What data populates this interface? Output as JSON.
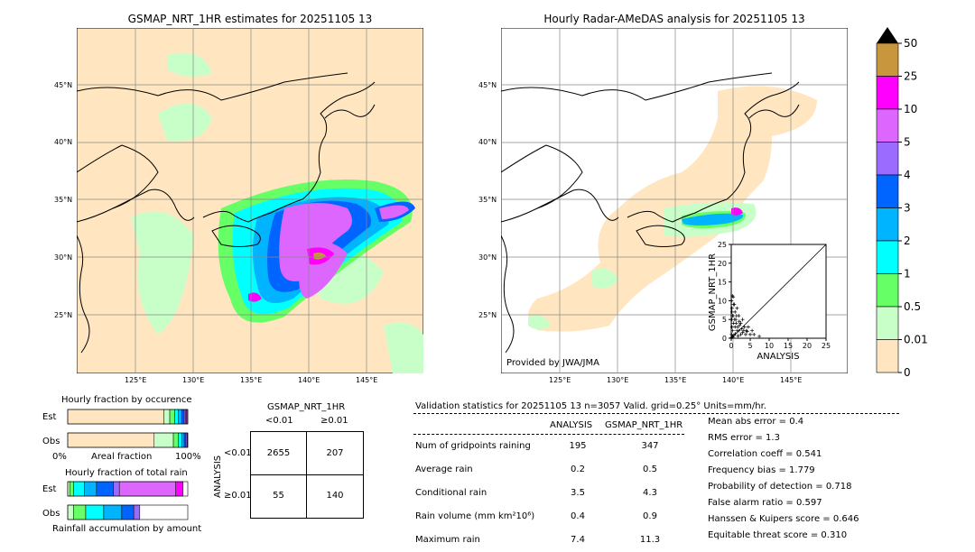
{
  "left_map": {
    "title": "GSMAP_NRT_1HR estimates for 20251105 13",
    "lat_labels": [
      "45°N",
      "40°N",
      "35°N",
      "30°N",
      "25°N"
    ],
    "lon_labels": [
      "125°E",
      "130°E",
      "135°E",
      "140°E",
      "145°E"
    ]
  },
  "right_map": {
    "title": "Hourly Radar-AMeDAS analysis for 20251105 13",
    "lat_labels": [
      "45°N",
      "40°N",
      "35°N",
      "30°N",
      "25°N"
    ],
    "lon_labels": [
      "125°E",
      "130°E",
      "135°E",
      "140°E",
      "145°E"
    ],
    "credit": "Provided by JWA/JMA"
  },
  "colorbar": {
    "labels": [
      "50",
      "25",
      "10",
      "5",
      "4",
      "3",
      "2",
      "1",
      "0.5",
      "0.01",
      "0"
    ],
    "colors": [
      "#c8963c",
      "#ff00ff",
      "#dd66ff",
      "#9b6bff",
      "#0064ff",
      "#00b4ff",
      "#00ffff",
      "#66ff66",
      "#c8ffc8",
      "#ffe6c0"
    ]
  },
  "chart_data": [
    {
      "type": "scatter",
      "xlabel": "ANALYSIS",
      "ylabel": "GSMAP_NRT_1HR",
      "xlim": [
        0,
        25
      ],
      "ylim": [
        0,
        25
      ],
      "xticks": [
        "0",
        "5",
        "10",
        "15",
        "20",
        "25"
      ],
      "yticks": [
        "0",
        "5",
        "10",
        "15",
        "20",
        "25"
      ],
      "points": [
        [
          0.1,
          10
        ],
        [
          0.2,
          8
        ],
        [
          0.3,
          6
        ],
        [
          0.5,
          11
        ],
        [
          0.8,
          9
        ],
        [
          1,
          7
        ],
        [
          1.2,
          5
        ],
        [
          1.5,
          8
        ],
        [
          2,
          6
        ],
        [
          2.5,
          4
        ],
        [
          3,
          5
        ],
        [
          3.5,
          3
        ],
        [
          0.2,
          3
        ],
        [
          0.4,
          2
        ],
        [
          0.6,
          4
        ],
        [
          1,
          3
        ],
        [
          1.5,
          2
        ],
        [
          2,
          2
        ],
        [
          2.5,
          1
        ],
        [
          3,
          1.5
        ],
        [
          4,
          2
        ],
        [
          5,
          1
        ],
        [
          6,
          1
        ],
        [
          7.4,
          0.5
        ],
        [
          0.1,
          1
        ],
        [
          0.3,
          0.5
        ],
        [
          0.7,
          0.8
        ],
        [
          1.1,
          1.2
        ],
        [
          1.8,
          0.6
        ],
        [
          0.2,
          5
        ],
        [
          0.5,
          6
        ],
        [
          0.9,
          5
        ],
        [
          1.3,
          4
        ],
        [
          1.7,
          3
        ],
        [
          2.2,
          3.5
        ],
        [
          2.8,
          2.5
        ],
        [
          3.3,
          2
        ],
        [
          4.5,
          3
        ],
        [
          5.5,
          2
        ],
        [
          0.1,
          0.2
        ],
        [
          0.4,
          0.3
        ],
        [
          0.2,
          7
        ],
        [
          0.6,
          9
        ],
        [
          1.4,
          6
        ],
        [
          2.1,
          4.5
        ],
        [
          3.8,
          1
        ],
        [
          4.2,
          1.8
        ],
        [
          0.3,
          11.3
        ]
      ]
    },
    {
      "type": "bar",
      "title": "Hourly fraction by occurence",
      "categories": [
        "Est",
        "Obs"
      ],
      "xlabel": "Areal fraction",
      "xticks": [
        "0%",
        "100%"
      ],
      "series": [
        {
          "color": "#ffe6c0",
          "values": [
            0.8,
            0.72
          ]
        },
        {
          "color": "#c8ffc8",
          "values": [
            0.05,
            0.16
          ]
        },
        {
          "color": "#66ff66",
          "values": [
            0.04,
            0.04
          ]
        },
        {
          "color": "#00ffff",
          "values": [
            0.03,
            0.03
          ]
        },
        {
          "color": "#00b4ff",
          "values": [
            0.03,
            0.02
          ]
        },
        {
          "color": "#0064ff",
          "values": [
            0.02,
            0.015
          ]
        },
        {
          "color": "#9b6bff",
          "values": [
            0.01,
            0.01
          ]
        },
        {
          "color": "#dd66ff",
          "values": [
            0.01,
            0.005
          ]
        },
        {
          "color": "#ff00ff",
          "values": [
            0.01,
            0.0
          ]
        }
      ]
    },
    {
      "type": "bar",
      "title": "Hourly fraction of total rain",
      "categories": [
        "Est",
        "Obs"
      ],
      "xlabel": "Rainfall accumulation by amount",
      "series": [
        {
          "color": "#c8ffc8",
          "values": [
            0.02,
            0.05
          ]
        },
        {
          "color": "#66ff66",
          "values": [
            0.03,
            0.1
          ]
        },
        {
          "color": "#00ffff",
          "values": [
            0.09,
            0.15
          ]
        },
        {
          "color": "#00b4ff",
          "values": [
            0.1,
            0.15
          ]
        },
        {
          "color": "#0064ff",
          "values": [
            0.14,
            0.1
          ]
        },
        {
          "color": "#9b6bff",
          "values": [
            0.05,
            0.05
          ]
        },
        {
          "color": "#dd66ff",
          "values": [
            0.47,
            0.0
          ]
        },
        {
          "color": "#ff00ff",
          "values": [
            0.06,
            0.0
          ]
        }
      ]
    },
    {
      "type": "table",
      "title": "GSMAP_NRT_1HR",
      "col_headers": [
        "<0.01",
        "≥0.01"
      ],
      "row_label": "ANALYSIS",
      "row_headers": [
        "<0.01",
        "≥0.01"
      ],
      "cells": [
        [
          "2655",
          "207"
        ],
        [
          "55",
          "140"
        ]
      ]
    }
  ],
  "stats": {
    "header": "Validation statistics for 20251105 13  n=3057 Valid. grid=0.25° Units=mm/hr.",
    "col_analysis": "ANALYSIS",
    "col_gsmap": "GSMAP_NRT_1HR",
    "rows": [
      {
        "label": "Num of gridpoints raining",
        "a": "195",
        "g": "347"
      },
      {
        "label": "Average rain",
        "a": "0.2",
        "g": "0.5"
      },
      {
        "label": "Conditional rain",
        "a": "3.5",
        "g": "4.3"
      },
      {
        "label": "Rain volume (mm km²10⁶)",
        "a": "0.4",
        "g": "0.9"
      },
      {
        "label": "Maximum rain",
        "a": "7.4",
        "g": "11.3"
      }
    ],
    "scores": [
      "Mean abs error =    0.4",
      "RMS error =    1.3",
      "Correlation coeff =  0.541",
      "Frequency bias =  1.779",
      "Probability of detection =  0.718",
      "False alarm ratio =  0.597",
      "Hanssen & Kuipers score =  0.646",
      "Equitable threat score =  0.310"
    ]
  }
}
